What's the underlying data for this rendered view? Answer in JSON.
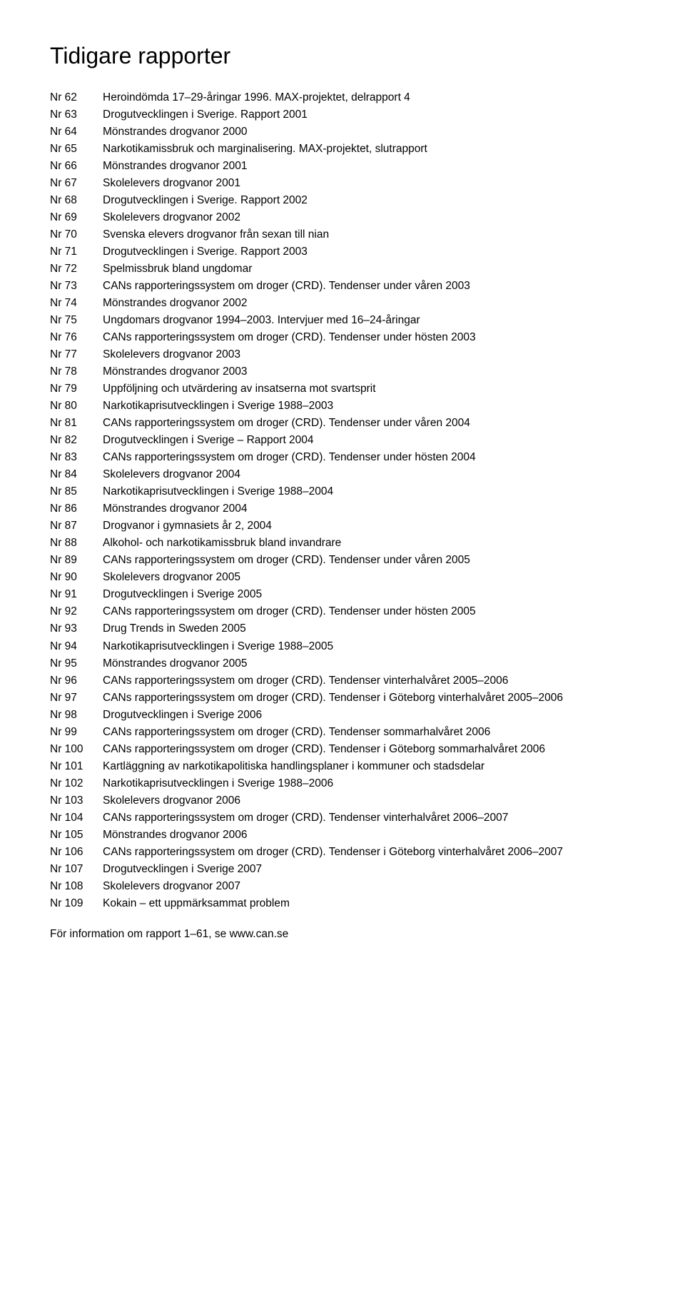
{
  "title": "Tidigare rapporter",
  "entries": [
    {
      "nr": "Nr 62",
      "desc": "Heroindömda 17–29-åringar 1996. MAX-projektet, delrapport 4"
    },
    {
      "nr": "Nr 63",
      "desc": "Drogutvecklingen i Sverige. Rapport 2001"
    },
    {
      "nr": "Nr 64",
      "desc": "Mönstrandes drogvanor 2000"
    },
    {
      "nr": "Nr 65",
      "desc": "Narkotikamissbruk och marginalisering. MAX-projektet, slutrapport"
    },
    {
      "nr": "Nr 66",
      "desc": "Mönstrandes drogvanor 2001"
    },
    {
      "nr": "Nr 67",
      "desc": "Skolelevers drogvanor 2001"
    },
    {
      "nr": "Nr 68",
      "desc": "Drogutvecklingen i Sverige. Rapport 2002"
    },
    {
      "nr": "Nr 69",
      "desc": "Skolelevers drogvanor 2002"
    },
    {
      "nr": "Nr 70",
      "desc": "Svenska elevers drogvanor från sexan till nian"
    },
    {
      "nr": "Nr 71",
      "desc": "Drogutvecklingen i Sverige. Rapport 2003"
    },
    {
      "nr": "Nr 72",
      "desc": "Spelmissbruk bland ungdomar"
    },
    {
      "nr": "Nr 73",
      "desc": "CANs rapporteringssystem om droger (CRD). Tendenser under våren 2003"
    },
    {
      "nr": "Nr 74",
      "desc": "Mönstrandes drogvanor 2002"
    },
    {
      "nr": "Nr 75",
      "desc": "Ungdomars drogvanor 1994–2003. Intervjuer med 16–24-åringar"
    },
    {
      "nr": "Nr 76",
      "desc": "CANs rapporteringssystem om droger (CRD). Tendenser under hösten 2003"
    },
    {
      "nr": "Nr 77",
      "desc": "Skolelevers drogvanor 2003"
    },
    {
      "nr": "Nr 78",
      "desc": "Mönstrandes drogvanor 2003"
    },
    {
      "nr": "Nr 79",
      "desc": "Uppföljning och utvärdering av insatserna mot svartsprit"
    },
    {
      "nr": "Nr 80",
      "desc": "Narkotikaprisutvecklingen i Sverige 1988–2003"
    },
    {
      "nr": "Nr 81",
      "desc": "CANs rapporteringssystem om droger (CRD). Tendenser under våren 2004"
    },
    {
      "nr": "Nr 82",
      "desc": "Drogutvecklingen i Sverige – Rapport 2004"
    },
    {
      "nr": "Nr 83",
      "desc": "CANs rapporteringssystem om droger (CRD). Tendenser under hösten 2004"
    },
    {
      "nr": "Nr 84",
      "desc": "Skolelevers drogvanor 2004"
    },
    {
      "nr": "Nr 85",
      "desc": "Narkotikaprisutvecklingen i Sverige 1988–2004"
    },
    {
      "nr": "Nr 86",
      "desc": "Mönstrandes drogvanor 2004"
    },
    {
      "nr": "Nr 87",
      "desc": "Drogvanor i gymnasiets år 2, 2004"
    },
    {
      "nr": "Nr 88",
      "desc": "Alkohol- och narkotikamissbruk bland invandrare"
    },
    {
      "nr": "Nr 89",
      "desc": "CANs rapporteringssystem om droger (CRD). Tendenser under våren 2005"
    },
    {
      "nr": "Nr 90",
      "desc": "Skolelevers drogvanor 2005"
    },
    {
      "nr": "Nr 91",
      "desc": "Drogutvecklingen i Sverige 2005"
    },
    {
      "nr": "Nr 92",
      "desc": "CANs rapporteringssystem om droger (CRD). Tendenser under hösten 2005"
    },
    {
      "nr": "Nr 93",
      "desc": "Drug Trends in Sweden 2005"
    },
    {
      "nr": "Nr 94",
      "desc": "Narkotikaprisutvecklingen i Sverige 1988–2005"
    },
    {
      "nr": "Nr 95",
      "desc": "Mönstrandes drogvanor 2005"
    },
    {
      "nr": "Nr 96",
      "desc": "CANs rapporteringssystem om droger (CRD). Tendenser vinterhalvåret 2005–2006"
    },
    {
      "nr": "Nr 97",
      "desc": "CANs rapporteringssystem om droger (CRD). Tendenser i Göteborg vinterhalvåret 2005–2006"
    },
    {
      "nr": "Nr 98",
      "desc": "Drogutvecklingen i Sverige 2006"
    },
    {
      "nr": "Nr 99",
      "desc": "CANs rapporteringssystem om droger (CRD). Tendenser sommarhalvåret 2006"
    },
    {
      "nr": "Nr 100",
      "desc": "CANs rapporteringssystem om droger (CRD). Tendenser i Göteborg sommarhalvåret 2006"
    },
    {
      "nr": "Nr 101",
      "desc": "Kartläggning av narkotikapolitiska handlingsplaner i kommuner och stadsdelar"
    },
    {
      "nr": "Nr 102",
      "desc": "Narkotikaprisutvecklingen i Sverige 1988–2006"
    },
    {
      "nr": "Nr 103",
      "desc": "Skolelevers drogvanor 2006"
    },
    {
      "nr": "Nr 104",
      "desc": "CANs rapporteringssystem om droger (CRD). Tendenser vinterhalvåret 2006–2007"
    },
    {
      "nr": "Nr 105",
      "desc": "Mönstrandes drogvanor 2006"
    },
    {
      "nr": "Nr 106",
      "desc": "CANs rapporteringssystem om droger (CRD). Tendenser i Göteborg vinterhalvåret 2006–2007"
    },
    {
      "nr": "Nr 107",
      "desc": "Drogutvecklingen i Sverige 2007"
    },
    {
      "nr": "Nr 108",
      "desc": "Skolelevers drogvanor 2007"
    },
    {
      "nr": "Nr 109",
      "desc": "Kokain – ett uppmärksammat problem"
    }
  ],
  "footer": "För information om rapport 1–61, se www.can.se"
}
